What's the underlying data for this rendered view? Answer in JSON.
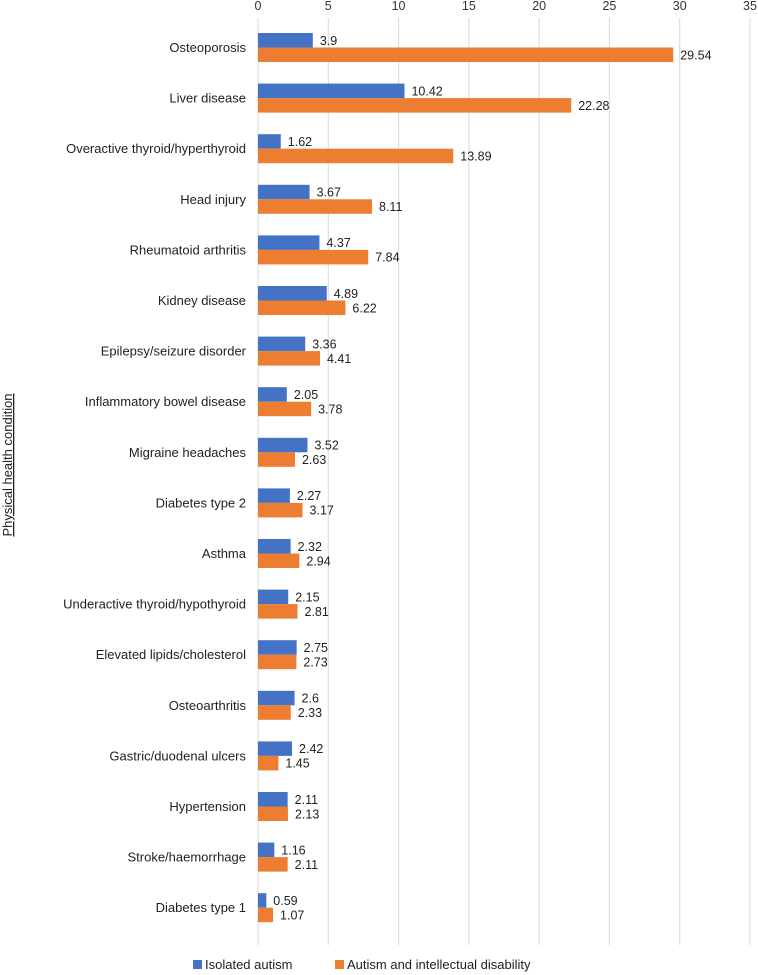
{
  "chart_data": {
    "type": "bar",
    "orientation": "horizontal",
    "title": "",
    "xlabel": "",
    "ylabel": "Physical health condition",
    "xlim": [
      0,
      35
    ],
    "xticks": [
      0,
      5,
      10,
      15,
      20,
      25,
      30,
      35
    ],
    "grid": true,
    "legend_position": "bottom",
    "categories": [
      "Osteoporosis",
      "Liver disease",
      "Overactive thyroid/hyperthyroid",
      "Head injury",
      "Rheumatoid arthritis",
      "Kidney disease",
      "Epilepsy/seizure disorder",
      "Inflammatory bowel disease",
      "Migraine headaches",
      "Diabetes type 2",
      "Asthma",
      "Underactive thyroid/hypothyroid",
      "Elevated lipids/cholesterol",
      "Osteoarthritis",
      "Gastric/duodenal ulcers",
      "Hypertension",
      "Stroke/haemorrhage",
      "Diabetes type 1"
    ],
    "series": [
      {
        "name": "Isolated autism",
        "color": "#4472C4",
        "values": [
          3.9,
          10.42,
          1.62,
          3.67,
          4.37,
          4.89,
          3.36,
          2.05,
          3.52,
          2.27,
          2.32,
          2.15,
          2.75,
          2.6,
          2.42,
          2.11,
          1.16,
          0.59
        ],
        "labels": [
          "3.9",
          "10.42",
          "1.62",
          "3.67",
          "4.37",
          "4.89",
          "3.36",
          "2.05",
          "3.52",
          "2.27",
          "2.32",
          "2.15",
          "2.75",
          "2.6",
          "2.42",
          "2.11",
          "1.16",
          "0.59"
        ]
      },
      {
        "name": "Autism and intellectual disability",
        "color": "#ED7D31",
        "values": [
          29.54,
          22.28,
          13.89,
          8.11,
          7.84,
          6.22,
          4.41,
          3.78,
          2.63,
          3.17,
          2.94,
          2.81,
          2.73,
          2.33,
          1.45,
          2.13,
          2.11,
          1.07
        ],
        "labels": [
          "29.54",
          "22.28",
          "13.89",
          "8.11",
          "7.84",
          "6.22",
          "4.41",
          "3.78",
          "2.63",
          "3.17",
          "2.94",
          "2.81",
          "2.73",
          "2.33",
          "1.45",
          "2.13",
          "2.11",
          "1.07"
        ]
      }
    ]
  }
}
